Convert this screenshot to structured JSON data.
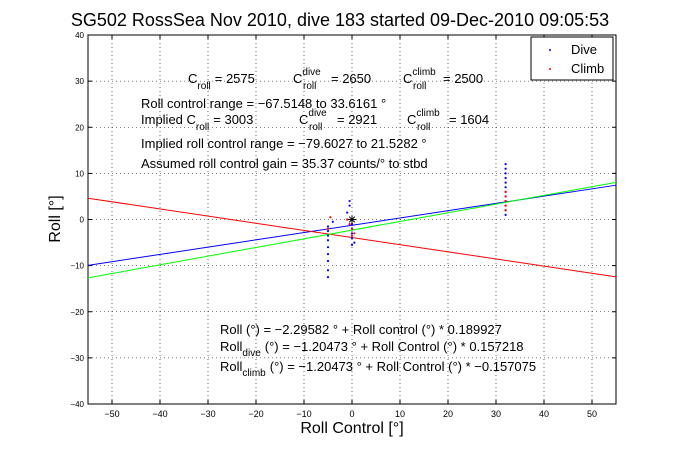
{
  "chart_data": {
    "type": "scatter",
    "title": "SG502 RossSea Nov 2010, dive 183 started 09-Dec-2010 09:05:53",
    "xlabel": "Roll Control [°]",
    "ylabel": "Roll [°]",
    "xlim": [
      -55,
      55
    ],
    "ylim": [
      -40,
      40
    ],
    "xticks": [
      -50,
      -40,
      -30,
      -20,
      -10,
      0,
      10,
      20,
      30,
      40,
      50
    ],
    "yticks": [
      -40,
      -30,
      -20,
      -10,
      0,
      10,
      20,
      30,
      40
    ],
    "grid": true,
    "legend": {
      "placement": "top-right",
      "entries": [
        {
          "label": "Dive",
          "color": "#0000ff"
        },
        {
          "label": "Climb",
          "color": "#ff0000"
        }
      ]
    },
    "series": [
      {
        "name": "Dive",
        "color": "#0000ff",
        "marker": "point",
        "points": [
          [
            -5,
            -12.5
          ],
          [
            -5,
            -11
          ],
          [
            -5,
            -9
          ],
          [
            -5,
            -7.5
          ],
          [
            -5,
            -6
          ],
          [
            -5,
            -4.5
          ],
          [
            -5,
            -3.5
          ],
          [
            -5,
            -2.5
          ],
          [
            -5,
            -1.5
          ],
          [
            -4,
            -0.5
          ],
          [
            -1,
            1.5
          ],
          [
            -0.5,
            3
          ],
          [
            -0.5,
            4
          ],
          [
            0,
            0
          ],
          [
            0,
            -1
          ],
          [
            0,
            -2
          ],
          [
            0,
            -3
          ],
          [
            0,
            -4
          ],
          [
            0.5,
            -5
          ],
          [
            0,
            -5.5
          ],
          [
            32,
            1
          ],
          [
            32,
            2
          ],
          [
            32,
            3
          ],
          [
            32,
            4
          ],
          [
            32,
            5
          ],
          [
            32,
            6
          ],
          [
            32,
            7
          ],
          [
            32,
            8
          ],
          [
            32,
            9
          ],
          [
            32,
            10
          ],
          [
            32,
            11
          ],
          [
            32,
            12
          ]
        ]
      },
      {
        "name": "Climb",
        "color": "#ff0000",
        "marker": "point",
        "points": [
          [
            -5,
            -2
          ],
          [
            -4.5,
            0.5
          ],
          [
            -1,
            0
          ],
          [
            -0.5,
            -1
          ],
          [
            0,
            -2
          ],
          [
            0.5,
            -3
          ],
          [
            0,
            -3.5
          ],
          [
            32,
            2
          ],
          [
            32,
            3
          ],
          [
            32,
            4
          ],
          [
            32,
            5
          ],
          [
            32,
            6
          ]
        ]
      }
    ],
    "fit_lines": [
      {
        "color": "#0000ff",
        "x": [
          -55,
          55
        ],
        "y": [
          -9.94,
          7.44
        ]
      },
      {
        "color": "#ff0000",
        "x": [
          -55,
          55
        ],
        "y": [
          4.61,
          -12.43
        ]
      },
      {
        "color": "#00ff00",
        "x": [
          -55,
          55
        ],
        "y": [
          -12.65,
          8.05
        ]
      }
    ],
    "markers": [
      {
        "type": "star",
        "color": "#000000",
        "x": 0,
        "y": 0
      }
    ],
    "annotations": {
      "c_roll": {
        "base": "C",
        "sub": "roll",
        "value": "= 2575"
      },
      "c_roll_dive": {
        "base": "C",
        "sup": "dive",
        "sub": "roll",
        "value": "= 2650"
      },
      "c_roll_climb": {
        "base": "C",
        "sup": "climb",
        "sub": "roll",
        "value": "= 2500"
      },
      "roll_control_range": "Roll control range = −67.5148 to 33.6161 °",
      "implied_prefix": "Implied C",
      "implied_c_roll_sub": "roll",
      "implied_c_roll_value": "= 3003",
      "implied_c_dive": {
        "base": "C",
        "sup": "dive",
        "sub": "roll",
        "value": "= 2921"
      },
      "implied_c_climb": {
        "base": "C",
        "sup": "climb",
        "sub": "roll",
        "value": "= 1604"
      },
      "implied_range": "Implied roll control range = −79.6027 to 21.5282 °",
      "assumed_gain": "Assumed roll control gain = 35.37 counts/° to stbd",
      "fit1": "Roll (°) = −2.29582 ° + Roll control (°) * 0.189927",
      "fit2_base": "Roll",
      "fit2_sub": "dive",
      "fit2_rest": "(°) = −1.20473 ° + Roll Control (°) * 0.157218",
      "fit3_base": "Roll",
      "fit3_sub": "climb",
      "fit3_rest": "(°) = −1.20473 ° + Roll Control (°) * −0.157075"
    }
  }
}
